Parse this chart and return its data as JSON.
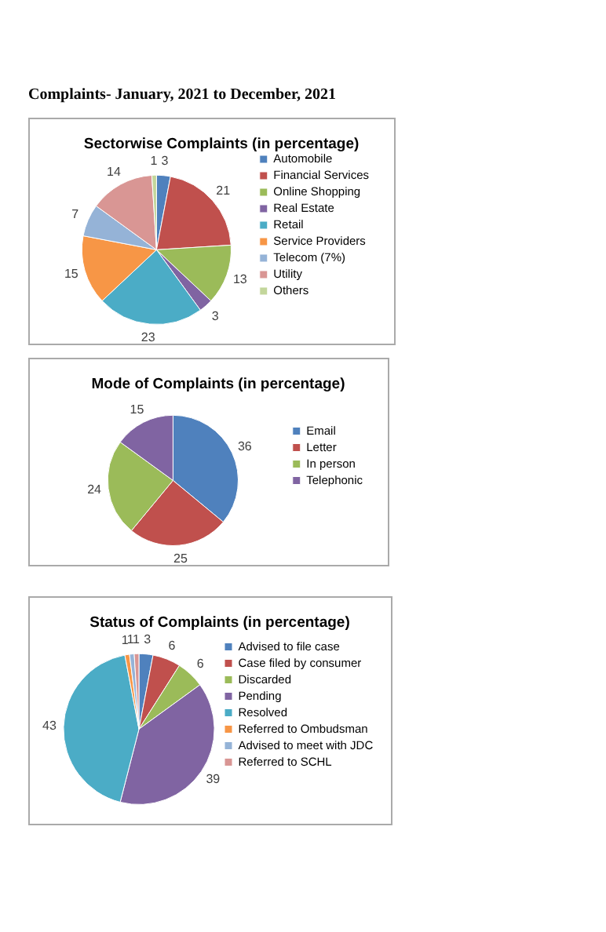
{
  "chart_data": [
    {
      "type": "pie",
      "title": "Complaints- January, 2021 to December, 2021",
      "subtitle": "Sectorwise Complaints (in percentage)",
      "categories": [
        "Automobile",
        "Financial Services",
        "Online Shopping",
        "Real Estate",
        "Retail",
        "Service Providers",
        "Telecom (7%)",
        "Utility",
        "Others"
      ],
      "values": [
        3,
        21,
        13,
        3,
        23,
        15,
        7,
        14,
        1
      ],
      "colors": [
        "#4f81bd",
        "#c0504d",
        "#9bbb59",
        "#8064a2",
        "#4bacc6",
        "#f79646",
        "#95b3d7",
        "#d99694",
        "#c3d69b"
      ],
      "data_labels": true,
      "legend": "right"
    },
    {
      "type": "pie",
      "title": "Mode of Complaints (in percentage)",
      "categories": [
        "Email",
        "Letter",
        "In person",
        "Telephonic"
      ],
      "values": [
        36,
        25,
        24,
        15
      ],
      "colors": [
        "#4f81bd",
        "#c0504d",
        "#9bbb59",
        "#8064a2"
      ],
      "data_labels": true,
      "legend": "right"
    },
    {
      "type": "pie",
      "title": "Status of Complaints (in percentage)",
      "categories": [
        "Advised to file case",
        "Case filed by consumer",
        "Discarded",
        "Pending",
        "Resolved",
        "Referred to Ombudsman",
        "Advised to meet with JDC",
        "Referred to SCHL"
      ],
      "values": [
        3,
        6,
        6,
        39,
        43,
        1,
        1,
        1
      ],
      "colors": [
        "#4f81bd",
        "#c0504d",
        "#9bbb59",
        "#8064a2",
        "#4bacc6",
        "#f79646",
        "#95b3d7",
        "#d99694"
      ],
      "data_labels": true,
      "legend": "right"
    }
  ]
}
